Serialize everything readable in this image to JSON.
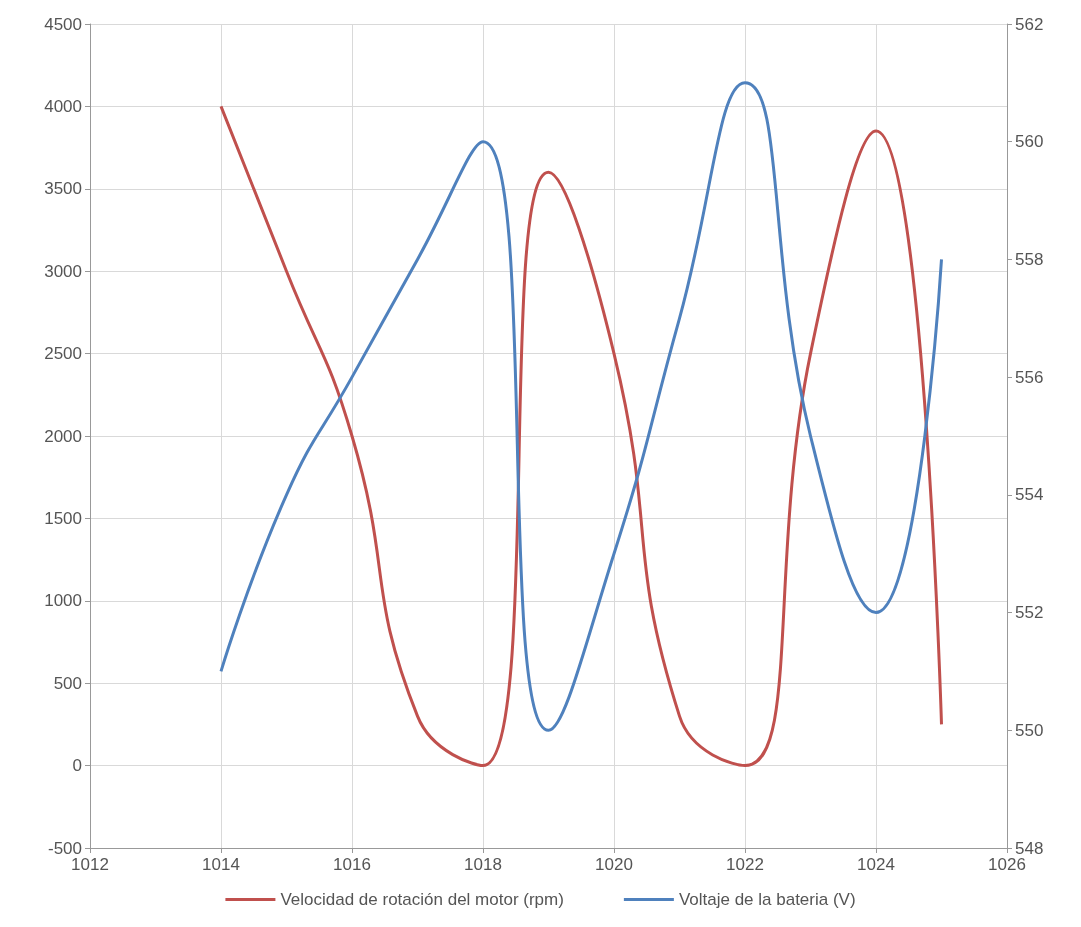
{
  "chart_data": {
    "type": "line",
    "x": [
      1014,
      1015,
      1016,
      1017,
      1018,
      1019,
      1020,
      1021,
      1022,
      1023,
      1024,
      1025
    ],
    "series": [
      {
        "name": "Velocidad de rotación del motor (rpm)",
        "color": "#c0504d",
        "values": [
          4000,
          3000,
          2000,
          300,
          0,
          3600,
          2500,
          300,
          0,
          2500,
          3850,
          250
        ]
      },
      {
        "name": "Voltaje de la bateria (V)",
        "color": "#4f81bd",
        "axis": "y2",
        "values": [
          551,
          554,
          556,
          558,
          560,
          550,
          553,
          557,
          561,
          555,
          552,
          558
        ]
      }
    ],
    "xlim": [
      1012,
      1026
    ],
    "xticks": [
      1012,
      1014,
      1016,
      1018,
      1020,
      1022,
      1024,
      1026
    ],
    "ylim": [
      -500,
      4500
    ],
    "yticks": [
      -500,
      0,
      500,
      1000,
      1500,
      2000,
      2500,
      3000,
      3500,
      4000,
      4500
    ],
    "y2lim": [
      548,
      562
    ],
    "y2ticks": [
      548,
      550,
      552,
      554,
      556,
      558,
      560,
      562
    ],
    "grid": true,
    "legend": "bottom",
    "marker": "none",
    "line_style": "solid"
  }
}
